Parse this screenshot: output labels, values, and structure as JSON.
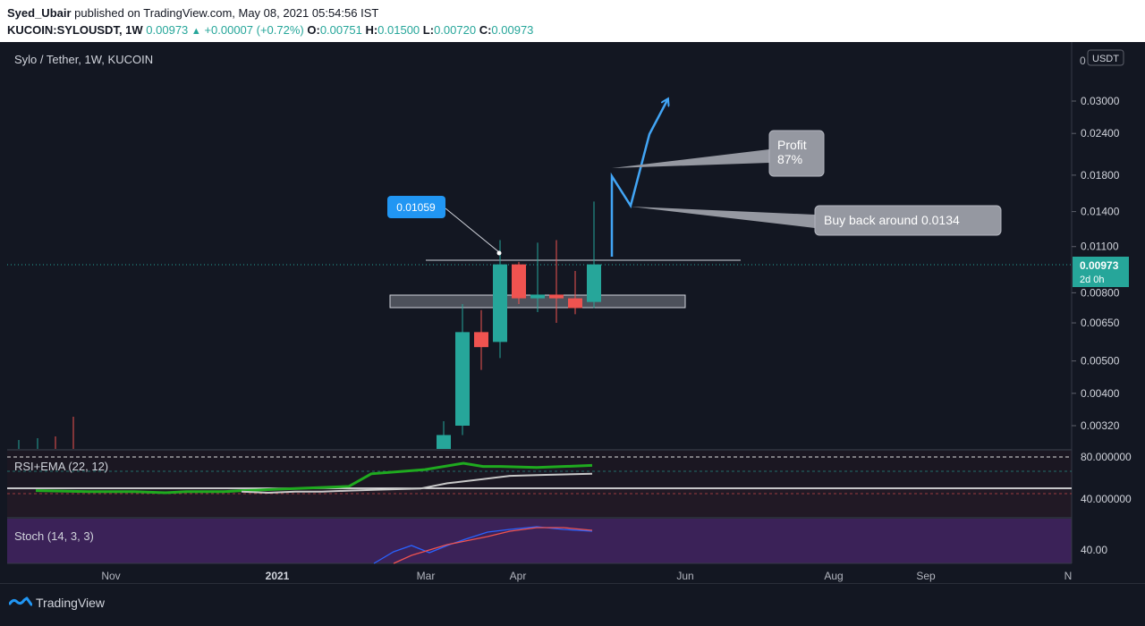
{
  "header": {
    "author": "Syed_Ubair",
    "published_text": "published on TradingView.com, May 08, 2021 05:54:56 IST",
    "symbol": "KUCOIN:SYLOUSDT, 1W",
    "last": "0.00973",
    "change": "+0.00007 (+0.72%)",
    "o_label": "O:",
    "o": "0.00751",
    "h_label": "H:",
    "h": "0.01500",
    "l_label": "L:",
    "l": "0.00720",
    "c_label": "C:",
    "c": "0.00973"
  },
  "chart_title": "Sylo / Tether, 1W, KUCOIN",
  "currency_badge": "USDT",
  "price_axis_top_label": "0",
  "price_tag": {
    "value": "0.00973",
    "countdown": "2d 0h"
  },
  "annotations": {
    "callout_value": "0.01059",
    "profit_line1": "Profit",
    "profit_line2": "87%",
    "buyback": "Buy back around 0.0134"
  },
  "rsi": {
    "label": "RSI+EMA (22, 12)",
    "axis": [
      "80.000000",
      "40.000000"
    ]
  },
  "stoch": {
    "label": "Stoch (14, 3, 3)",
    "axis": [
      "40.00"
    ]
  },
  "time_axis": [
    "Nov",
    "2021",
    "Mar",
    "Apr",
    "Jun",
    "Aug",
    "Sep",
    "N"
  ],
  "footer": {
    "brand": "TradingView"
  },
  "colors": {
    "up": "#26a69a",
    "down": "#ef5350",
    "accent": "#2196f3",
    "rsi": "#1faa1f",
    "ema": "#c8c8c8"
  },
  "chart_data": {
    "type": "candlestick",
    "title": "Sylo / Tether, 1W, KUCOIN",
    "y_scale": "log",
    "y_ticks": [
      "0.03000",
      "0.02400",
      "0.01800",
      "0.01400",
      "0.01100",
      "0.00800",
      "0.00650",
      "0.00500",
      "0.00400",
      "0.00320"
    ],
    "candles": [
      {
        "o": 0.00248,
        "h": 0.0033,
        "l": 0.00248,
        "c": 0.003
      },
      {
        "o": 0.0032,
        "h": 0.0074,
        "l": 0.003,
        "c": 0.0061
      },
      {
        "o": 0.0061,
        "h": 0.0071,
        "l": 0.0047,
        "c": 0.0055
      },
      {
        "o": 0.0057,
        "h": 0.0115,
        "l": 0.0051,
        "c": 0.00973
      },
      {
        "o": 0.00973,
        "h": 0.0099,
        "l": 0.0074,
        "c": 0.0077
      },
      {
        "o": 0.0077,
        "h": 0.0113,
        "l": 0.007,
        "c": 0.0079
      },
      {
        "o": 0.0079,
        "h": 0.0115,
        "l": 0.0065,
        "c": 0.0077
      },
      {
        "o": 0.0077,
        "h": 0.0093,
        "l": 0.0069,
        "c": 0.0072
      },
      {
        "o": 0.00751,
        "h": 0.015,
        "l": 0.0072,
        "c": 0.00973
      }
    ],
    "rsi_series": [
      {
        "name": "RSI",
        "values": [
          48,
          47,
          47,
          46,
          47,
          47,
          48,
          52,
          64,
          68,
          74,
          71,
          71,
          70,
          72
        ]
      }
    ],
    "ema_series": [
      {
        "name": "EMA",
        "values": [
          47,
          46,
          47,
          47,
          48,
          49,
          50,
          55,
          59,
          62,
          63,
          64
        ]
      }
    ]
  }
}
